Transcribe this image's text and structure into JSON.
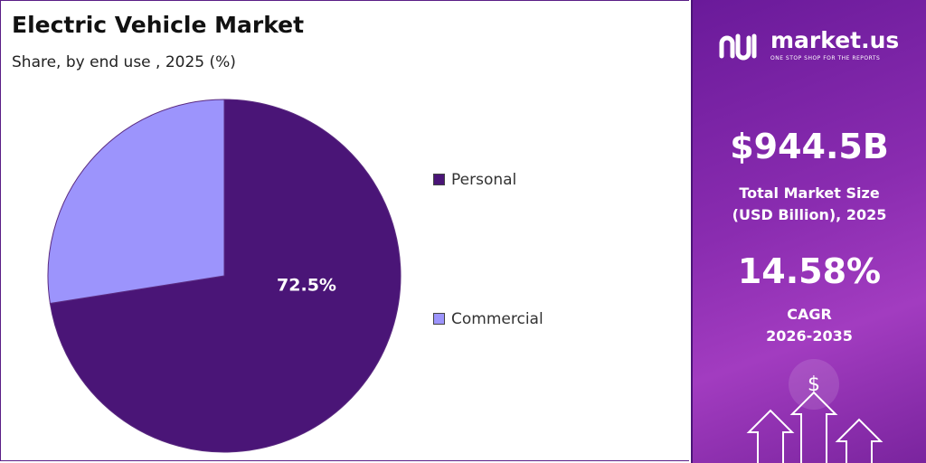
{
  "chart_data": {
    "type": "pie",
    "title": "Electric Vehicle  Market",
    "subtitle": "Share, by end use , 2025 (%)",
    "categories": [
      "Personal",
      "Commercial"
    ],
    "values": [
      72.5,
      27.5
    ],
    "value_labels": [
      "72.5%",
      null
    ],
    "colors": [
      "#4a1577",
      "#9c94fc"
    ],
    "legend": "right"
  },
  "panel": {
    "brand": "market.us",
    "tagline": "ONE STOP SHOP FOR THE REPORTS",
    "market_size": "$944.5B",
    "market_size_label": "Total Market Size (USD Billion), 2025",
    "cagr": "14.58%",
    "cagr_label": "CAGR 2026-2035"
  }
}
